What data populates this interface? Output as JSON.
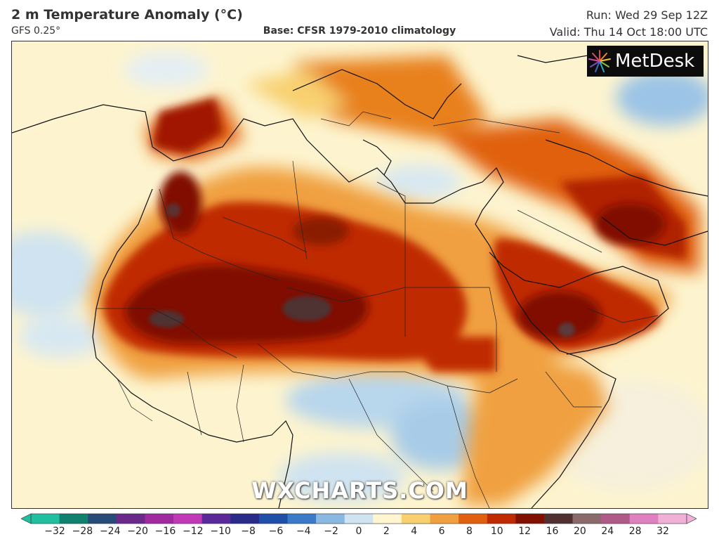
{
  "header": {
    "title": "2 m Temperature Anomaly (°C)",
    "model": "GFS 0.25°",
    "base": "Base: CFSR 1979-2010 climatology",
    "run": "Run: Wed 29 Sep 12Z",
    "valid": "Valid: Thu 14 Oct 18:00 UTC"
  },
  "logo": {
    "text": "MetDesk",
    "icon": "starburst-logo-icon"
  },
  "watermark": "WXCHARTS.COM",
  "colorbar": {
    "ticks": [
      "−32",
      "−28",
      "−24",
      "−20",
      "−16",
      "−12",
      "−10",
      "−8",
      "−6",
      "−4",
      "−2",
      "0",
      "2",
      "4",
      "6",
      "8",
      "10",
      "12",
      "16",
      "20",
      "24",
      "28",
      "32"
    ],
    "colors": [
      "#1fbf9f",
      "#10806f",
      "#2a4a7a",
      "#6a2a8a",
      "#a02aa0",
      "#c03ab8",
      "#5a2a9a",
      "#2a2a8a",
      "#1f4fa8",
      "#3a7ac8",
      "#8ab8e0",
      "#cfe3f0",
      "#fff6d0",
      "#f8d070",
      "#f0a040",
      "#e06010",
      "#c02a00",
      "#801000",
      "#503030",
      "#8a6a6a",
      "#b05a8a",
      "#e080c0",
      "#f0b0d8"
    ],
    "labels_unit": "°C"
  },
  "map": {
    "colors": {
      "ocean_base": "#fdf4cf",
      "cool": "#cfe3f0",
      "warm_light": "#f8d070",
      "warm": "#f0a040",
      "hot": "#e06010",
      "very_hot": "#c02a00",
      "extreme": "#801000",
      "max": "#503030",
      "coast": "#111111"
    }
  }
}
